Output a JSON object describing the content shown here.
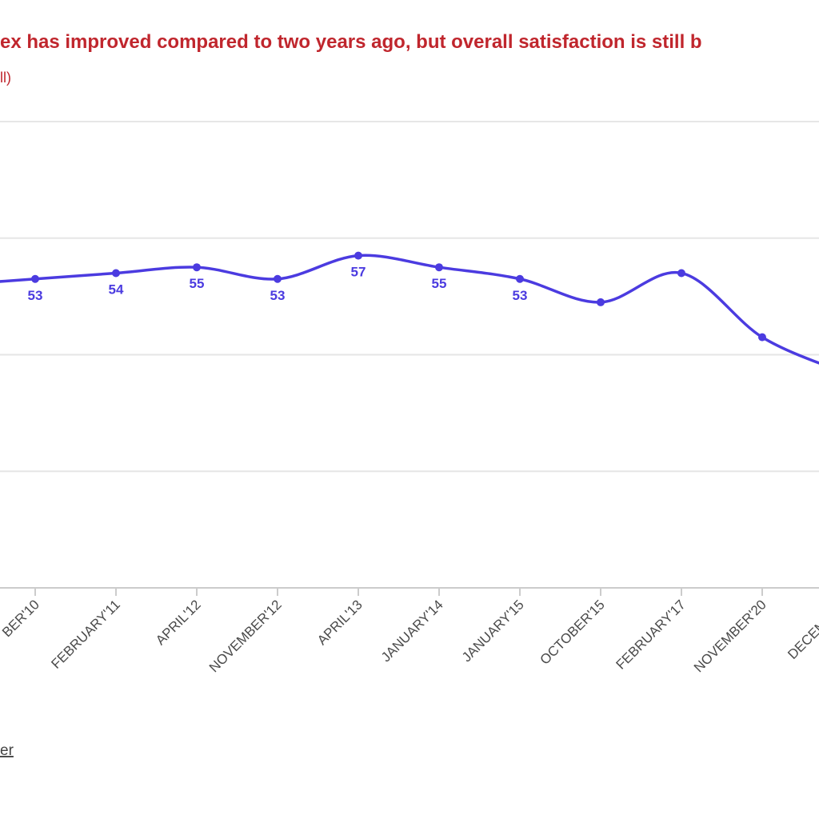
{
  "chart_data": {
    "type": "line",
    "title": "ex has improved compared to two years ago, but overall satisfaction is still b",
    "subtitle": "ll)",
    "footer": "er",
    "categories": [
      null,
      "BER'10",
      "FEBRUARY'11",
      "APRIL'12",
      "NOVEMBER'12",
      "APRIL'13",
      "JANUARY'14",
      "JANUARY'15",
      "OCTOBER'15",
      "FEBRUARY'17",
      "NOVEMBER'20",
      "DECEMBER"
    ],
    "series": [
      {
        "color": "#4b3be0",
        "values": [
          52,
          53,
          54,
          55,
          53,
          57,
          55,
          53,
          49,
          54,
          43,
          37
        ],
        "value_labels": [
          null,
          "53",
          "54",
          "55",
          "53",
          "57",
          "55",
          "53",
          null,
          null,
          null,
          null
        ]
      }
    ],
    "ylim": [
      0,
      80
    ],
    "yticks": [
      0,
      20,
      40,
      60,
      80
    ],
    "grid": true
  }
}
